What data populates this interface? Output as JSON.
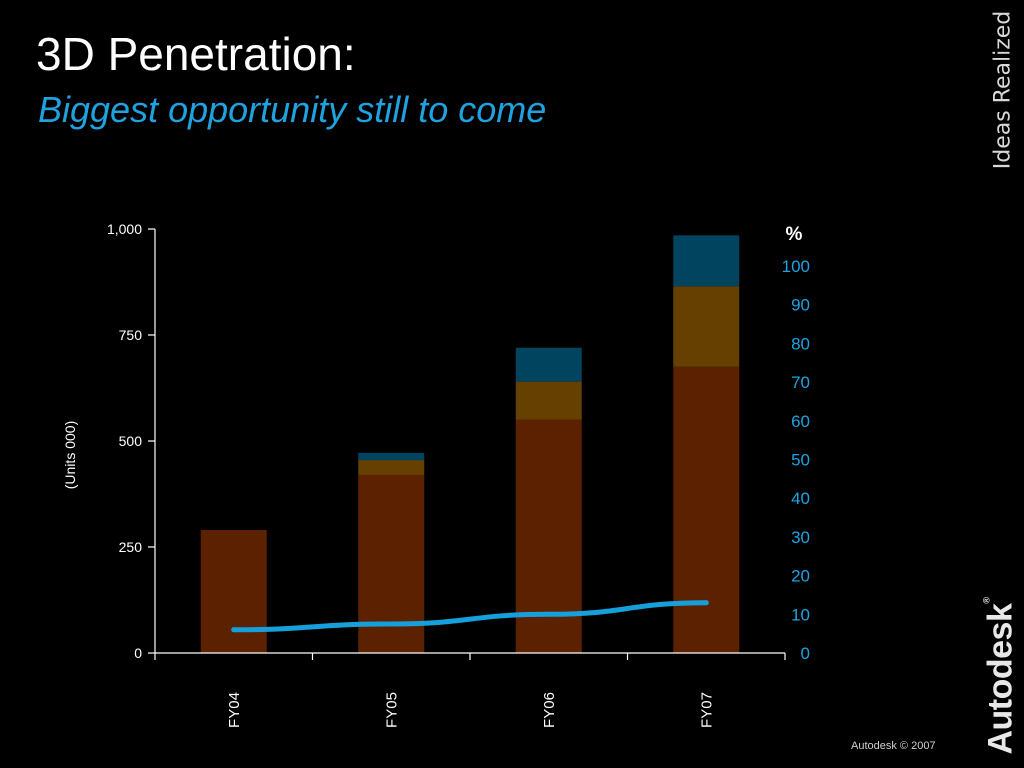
{
  "slide": {
    "title": "3D Penetration:",
    "subtitle": "Biggest opportunity still to come",
    "tagline": "Ideas Realized",
    "brand": "Autodesk",
    "brand_mark": "®",
    "copyright": "Autodesk © 2007"
  },
  "colors": {
    "background": "#000000",
    "accent": "#1fa3e0",
    "segment_base": "#5c2200",
    "segment_mid": "#664000",
    "segment_top": "#004460",
    "line": "#15a0dc"
  },
  "chart_data": {
    "type": "bar",
    "stacked": true,
    "categories": [
      "FY04",
      "FY05",
      "FY06",
      "FY07"
    ],
    "series": [
      {
        "values": [
          290,
          420,
          550,
          675
        ],
        "color": "#5c2200"
      },
      {
        "values": [
          0,
          35,
          90,
          190
        ],
        "color": "#664000"
      },
      {
        "values": [
          0,
          17,
          80,
          120
        ],
        "color": "#004460"
      }
    ],
    "line_series": {
      "axis": "right",
      "values": [
        6,
        7.5,
        10,
        13
      ],
      "color": "#15a0dc"
    },
    "ylabel": "(Units 000)",
    "ylim": [
      0,
      1000
    ],
    "yticks": [
      0,
      250,
      500,
      750,
      1000
    ],
    "ytick_labels": [
      "0",
      "250",
      "500",
      "750",
      "1,000"
    ],
    "y2label": "%",
    "y2lim": [
      0,
      100
    ],
    "y2ticks": [
      0,
      10,
      20,
      30,
      40,
      50,
      60,
      70,
      80,
      90,
      100
    ],
    "grid": false,
    "legend": "none"
  }
}
